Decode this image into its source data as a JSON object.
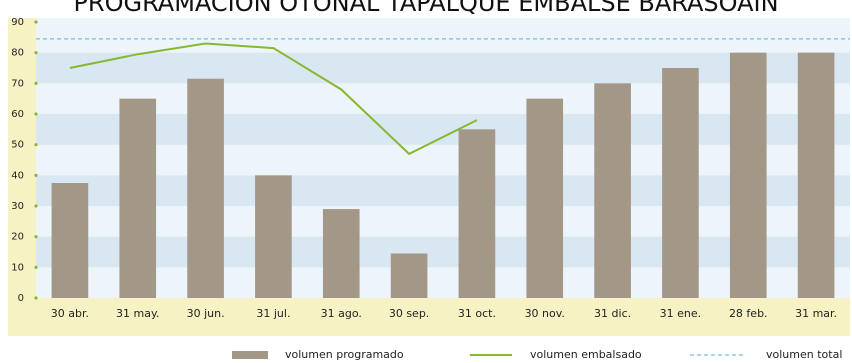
{
  "chart_data": {
    "type": "bar",
    "title": "PROGRAMACIÓN OTOÑAL TAPALQUÉ EMBALSE BARASOAIN",
    "categories": [
      "30 abr.",
      "31 may.",
      "30 jun.",
      "31 jul.",
      "31 ago.",
      "30 sep.",
      "31 oct.",
      "30 nov.",
      "31 dic.",
      "31 ene.",
      "28 feb.",
      "31 mar."
    ],
    "series": [
      {
        "name": "volumen programado",
        "type": "bar",
        "color": "#a39787",
        "values": [
          37.5,
          65,
          71.5,
          40,
          29,
          14.5,
          55,
          65,
          70,
          75,
          80,
          80
        ]
      },
      {
        "name": "volumen embalsado",
        "type": "line",
        "color": "#86b832",
        "values": [
          75,
          79.5,
          83,
          81.5,
          68,
          47,
          58,
          null,
          null,
          null,
          null,
          null
        ]
      }
    ],
    "reference_line": {
      "name": "volumen total",
      "value": 84.5,
      "color": "#6fc3d9"
    },
    "ylim": [
      0,
      90
    ],
    "yticks": [
      0,
      10,
      20,
      30,
      40,
      50,
      60,
      70,
      80,
      90
    ]
  }
}
